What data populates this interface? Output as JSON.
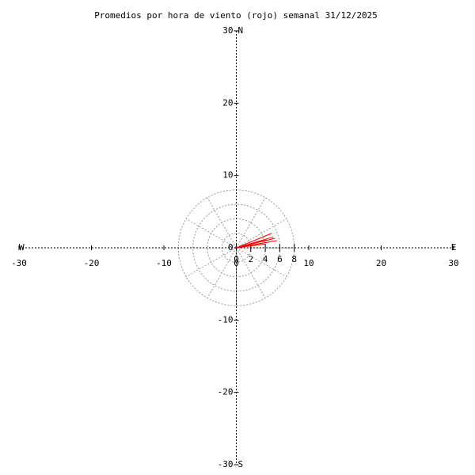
{
  "chart_data": {
    "type": "vector",
    "title": "Promedios por hora de viento (rojo) semanal 31/12/2025",
    "xlim": [
      -30,
      30
    ],
    "ylim": [
      -30,
      30
    ],
    "xticks": [
      -30,
      -20,
      -10,
      0,
      10,
      20,
      30
    ],
    "yticks": [
      -30,
      -20,
      -10,
      0,
      10,
      20,
      30
    ],
    "rings": [
      0,
      2,
      4,
      6,
      8
    ],
    "compass": {
      "north": "N",
      "south": "S",
      "west": "W",
      "east": "E"
    },
    "series": [
      {
        "color": "#ff0000",
        "x": [
          4.9,
          5.3,
          5.6,
          4.6,
          3.9,
          5.1,
          4.2
        ],
        "y": [
          2.0,
          1.3,
          1.0,
          0.8,
          0.5,
          1.5,
          1.1
        ]
      }
    ]
  }
}
